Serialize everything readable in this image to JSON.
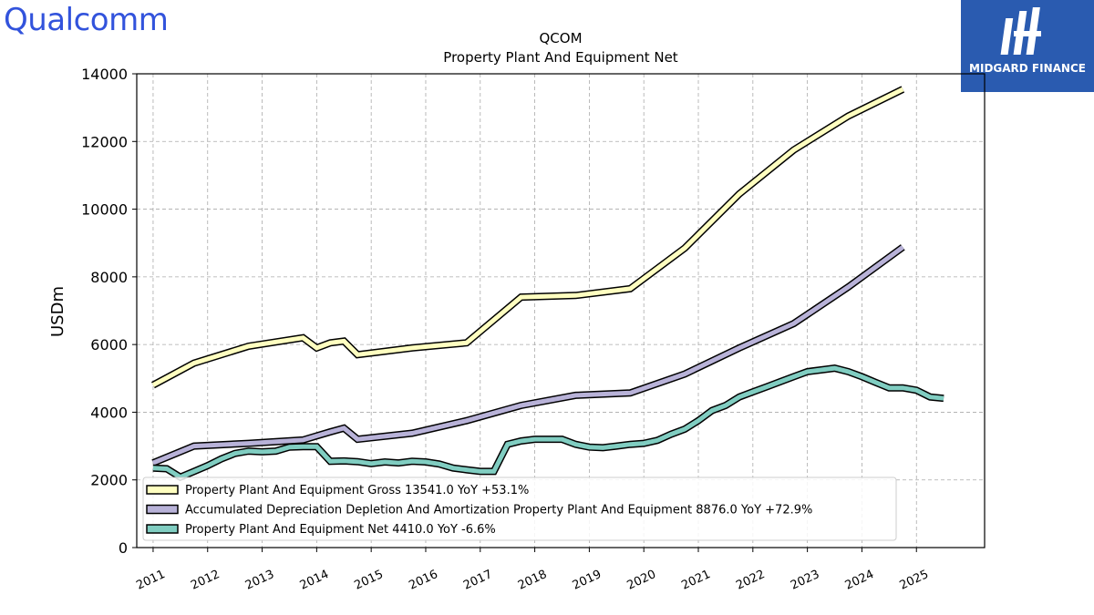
{
  "logos": {
    "left": "Qualcomm",
    "right": "MIDGARD FINANCE"
  },
  "chart_data": {
    "type": "line",
    "title": "QCOM",
    "subtitle": "Property Plant And Equipment Net",
    "ylabel": "USDm",
    "xlabel": "",
    "ylim": [
      0,
      14000
    ],
    "xlim": [
      2010.7,
      2026.25
    ],
    "yticks": [
      0,
      2000,
      4000,
      6000,
      8000,
      10000,
      12000,
      14000
    ],
    "xticks": [
      "2011",
      "2012",
      "2013",
      "2014",
      "2015",
      "2016",
      "2017",
      "2018",
      "2019",
      "2020",
      "2021",
      "2022",
      "2023",
      "2024",
      "2025"
    ],
    "grid": true,
    "legend_position": "lower-left",
    "series": [
      {
        "name": "Property Plant And Equipment Gross",
        "legend_label": "Property Plant And Equipment Gross  13541.0 YoY +53.1%",
        "color": "#ffffc0",
        "points": [
          [
            2011.0,
            4800
          ],
          [
            2011.75,
            5450
          ],
          [
            2012.75,
            5950
          ],
          [
            2013.75,
            6200
          ],
          [
            2014.0,
            5900
          ],
          [
            2014.25,
            6050
          ],
          [
            2014.5,
            6100
          ],
          [
            2014.75,
            5700
          ],
          [
            2015.75,
            5900
          ],
          [
            2016.75,
            6050
          ],
          [
            2017.75,
            7400
          ],
          [
            2018.75,
            7450
          ],
          [
            2019.75,
            7650
          ],
          [
            2020.75,
            8850
          ],
          [
            2021.75,
            10450
          ],
          [
            2022.75,
            11750
          ],
          [
            2023.75,
            12750
          ],
          [
            2024.75,
            13541
          ]
        ]
      },
      {
        "name": "Accumulated Depreciation Depletion And Amortization Property Plant And Equipment",
        "legend_label": "Accumulated Depreciation Depletion And Amortization Property Plant And Equipment  8876.0 YoY +72.9%",
        "color": "#b8b2d8",
        "points": [
          [
            2011.0,
            2500
          ],
          [
            2011.75,
            3000
          ],
          [
            2012.75,
            3080
          ],
          [
            2013.75,
            3180
          ],
          [
            2014.0,
            3300
          ],
          [
            2014.25,
            3420
          ],
          [
            2014.5,
            3530
          ],
          [
            2014.75,
            3200
          ],
          [
            2015.75,
            3380
          ],
          [
            2016.75,
            3750
          ],
          [
            2017.75,
            4200
          ],
          [
            2018.75,
            4500
          ],
          [
            2019.75,
            4570
          ],
          [
            2020.75,
            5130
          ],
          [
            2021.75,
            5900
          ],
          [
            2022.75,
            6620
          ],
          [
            2023.75,
            7700
          ],
          [
            2024.75,
            8876
          ]
        ]
      },
      {
        "name": "Property Plant And Equipment Net",
        "legend_label": "Property Plant And Equipment Net  4410.0 YoY -6.6%",
        "color": "#80cdc1",
        "points": [
          [
            2011.0,
            2350
          ],
          [
            2011.25,
            2330
          ],
          [
            2011.5,
            2080
          ],
          [
            2011.75,
            2250
          ],
          [
            2012.0,
            2420
          ],
          [
            2012.25,
            2620
          ],
          [
            2012.5,
            2780
          ],
          [
            2012.75,
            2850
          ],
          [
            2013.0,
            2830
          ],
          [
            2013.25,
            2850
          ],
          [
            2013.5,
            2970
          ],
          [
            2013.75,
            2980
          ],
          [
            2014.0,
            2980
          ],
          [
            2014.25,
            2550
          ],
          [
            2014.5,
            2560
          ],
          [
            2014.75,
            2540
          ],
          [
            2015.0,
            2480
          ],
          [
            2015.25,
            2530
          ],
          [
            2015.5,
            2500
          ],
          [
            2015.75,
            2550
          ],
          [
            2016.0,
            2530
          ],
          [
            2016.25,
            2470
          ],
          [
            2016.5,
            2350
          ],
          [
            2016.75,
            2300
          ],
          [
            2017.0,
            2250
          ],
          [
            2017.25,
            2250
          ],
          [
            2017.5,
            3050
          ],
          [
            2017.75,
            3150
          ],
          [
            2018.0,
            3200
          ],
          [
            2018.25,
            3200
          ],
          [
            2018.5,
            3200
          ],
          [
            2018.75,
            3050
          ],
          [
            2019.0,
            2970
          ],
          [
            2019.25,
            2950
          ],
          [
            2019.5,
            3000
          ],
          [
            2019.75,
            3050
          ],
          [
            2020.0,
            3080
          ],
          [
            2020.25,
            3170
          ],
          [
            2020.5,
            3350
          ],
          [
            2020.75,
            3500
          ],
          [
            2021.0,
            3750
          ],
          [
            2021.25,
            4050
          ],
          [
            2021.5,
            4200
          ],
          [
            2021.75,
            4450
          ],
          [
            2022.0,
            4600
          ],
          [
            2022.25,
            4750
          ],
          [
            2022.5,
            4900
          ],
          [
            2022.75,
            5050
          ],
          [
            2023.0,
            5200
          ],
          [
            2023.25,
            5250
          ],
          [
            2023.5,
            5300
          ],
          [
            2023.75,
            5200
          ],
          [
            2024.0,
            5050
          ],
          [
            2024.25,
            4880
          ],
          [
            2024.5,
            4720
          ],
          [
            2024.75,
            4720
          ],
          [
            2025.0,
            4650
          ],
          [
            2025.25,
            4450
          ],
          [
            2025.5,
            4410
          ]
        ]
      }
    ]
  }
}
